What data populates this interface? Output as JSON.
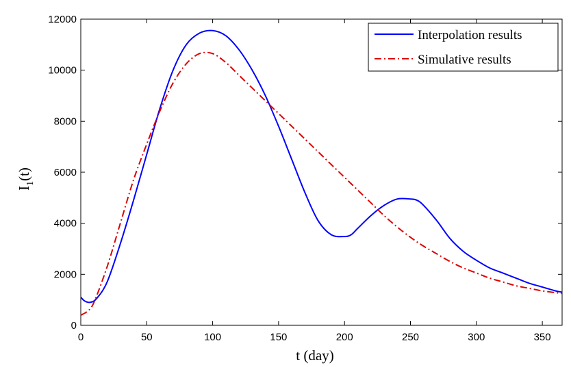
{
  "chart_data": {
    "type": "line",
    "title": "",
    "xlabel": "t (day)",
    "ylabel": "I",
    "ylabel_subscript": "1",
    "ylabel_suffix": "(t)",
    "xlim": [
      0,
      365
    ],
    "ylim": [
      0,
      12000
    ],
    "xticks": [
      0,
      50,
      100,
      150,
      200,
      250,
      300,
      350
    ],
    "xtick_labels": [
      "0",
      "50",
      "100",
      "150",
      "200",
      "250",
      "300",
      "350"
    ],
    "yticks": [
      0,
      2000,
      4000,
      6000,
      8000,
      10000,
      12000
    ],
    "ytick_labels": [
      "0",
      "2000",
      "4000",
      "6000",
      "8000",
      "10000",
      "12000"
    ],
    "grid": false,
    "legend_position": "top-right",
    "series": [
      {
        "name": "Interpolation results",
        "color": "#0000ff",
        "style": "solid",
        "x": [
          0,
          3,
          7,
          12,
          20,
          30,
          40,
          50,
          60,
          70,
          80,
          90,
          100,
          110,
          120,
          130,
          140,
          150,
          160,
          170,
          180,
          190,
          200,
          205,
          210,
          220,
          230,
          240,
          250,
          255,
          260,
          270,
          280,
          290,
          300,
          310,
          320,
          330,
          340,
          350,
          360,
          365
        ],
        "y": [
          1100,
          950,
          900,
          1050,
          1700,
          3200,
          4900,
          6700,
          8500,
          10000,
          11000,
          11450,
          11550,
          11350,
          10800,
          10000,
          9000,
          7800,
          6500,
          5200,
          4100,
          3550,
          3480,
          3550,
          3800,
          4300,
          4700,
          4950,
          4950,
          4900,
          4700,
          4100,
          3400,
          2900,
          2550,
          2250,
          2050,
          1850,
          1650,
          1500,
          1350,
          1300
        ]
      },
      {
        "name": "Simulative results",
        "color": "#dd0000",
        "style": "dashdot",
        "x": [
          0,
          5,
          10,
          20,
          30,
          40,
          50,
          60,
          70,
          80,
          90,
          100,
          110,
          120,
          130,
          140,
          150,
          160,
          170,
          180,
          190,
          200,
          210,
          220,
          230,
          240,
          250,
          260,
          270,
          280,
          290,
          300,
          310,
          320,
          330,
          340,
          350,
          360,
          365
        ],
        "y": [
          400,
          550,
          900,
          2300,
          4000,
          5700,
          7100,
          8400,
          9500,
          10250,
          10650,
          10650,
          10300,
          9800,
          9300,
          8800,
          8300,
          7800,
          7300,
          6800,
          6300,
          5800,
          5300,
          4800,
          4300,
          3850,
          3450,
          3100,
          2800,
          2500,
          2250,
          2050,
          1850,
          1700,
          1550,
          1450,
          1350,
          1280,
          1250
        ]
      }
    ]
  }
}
